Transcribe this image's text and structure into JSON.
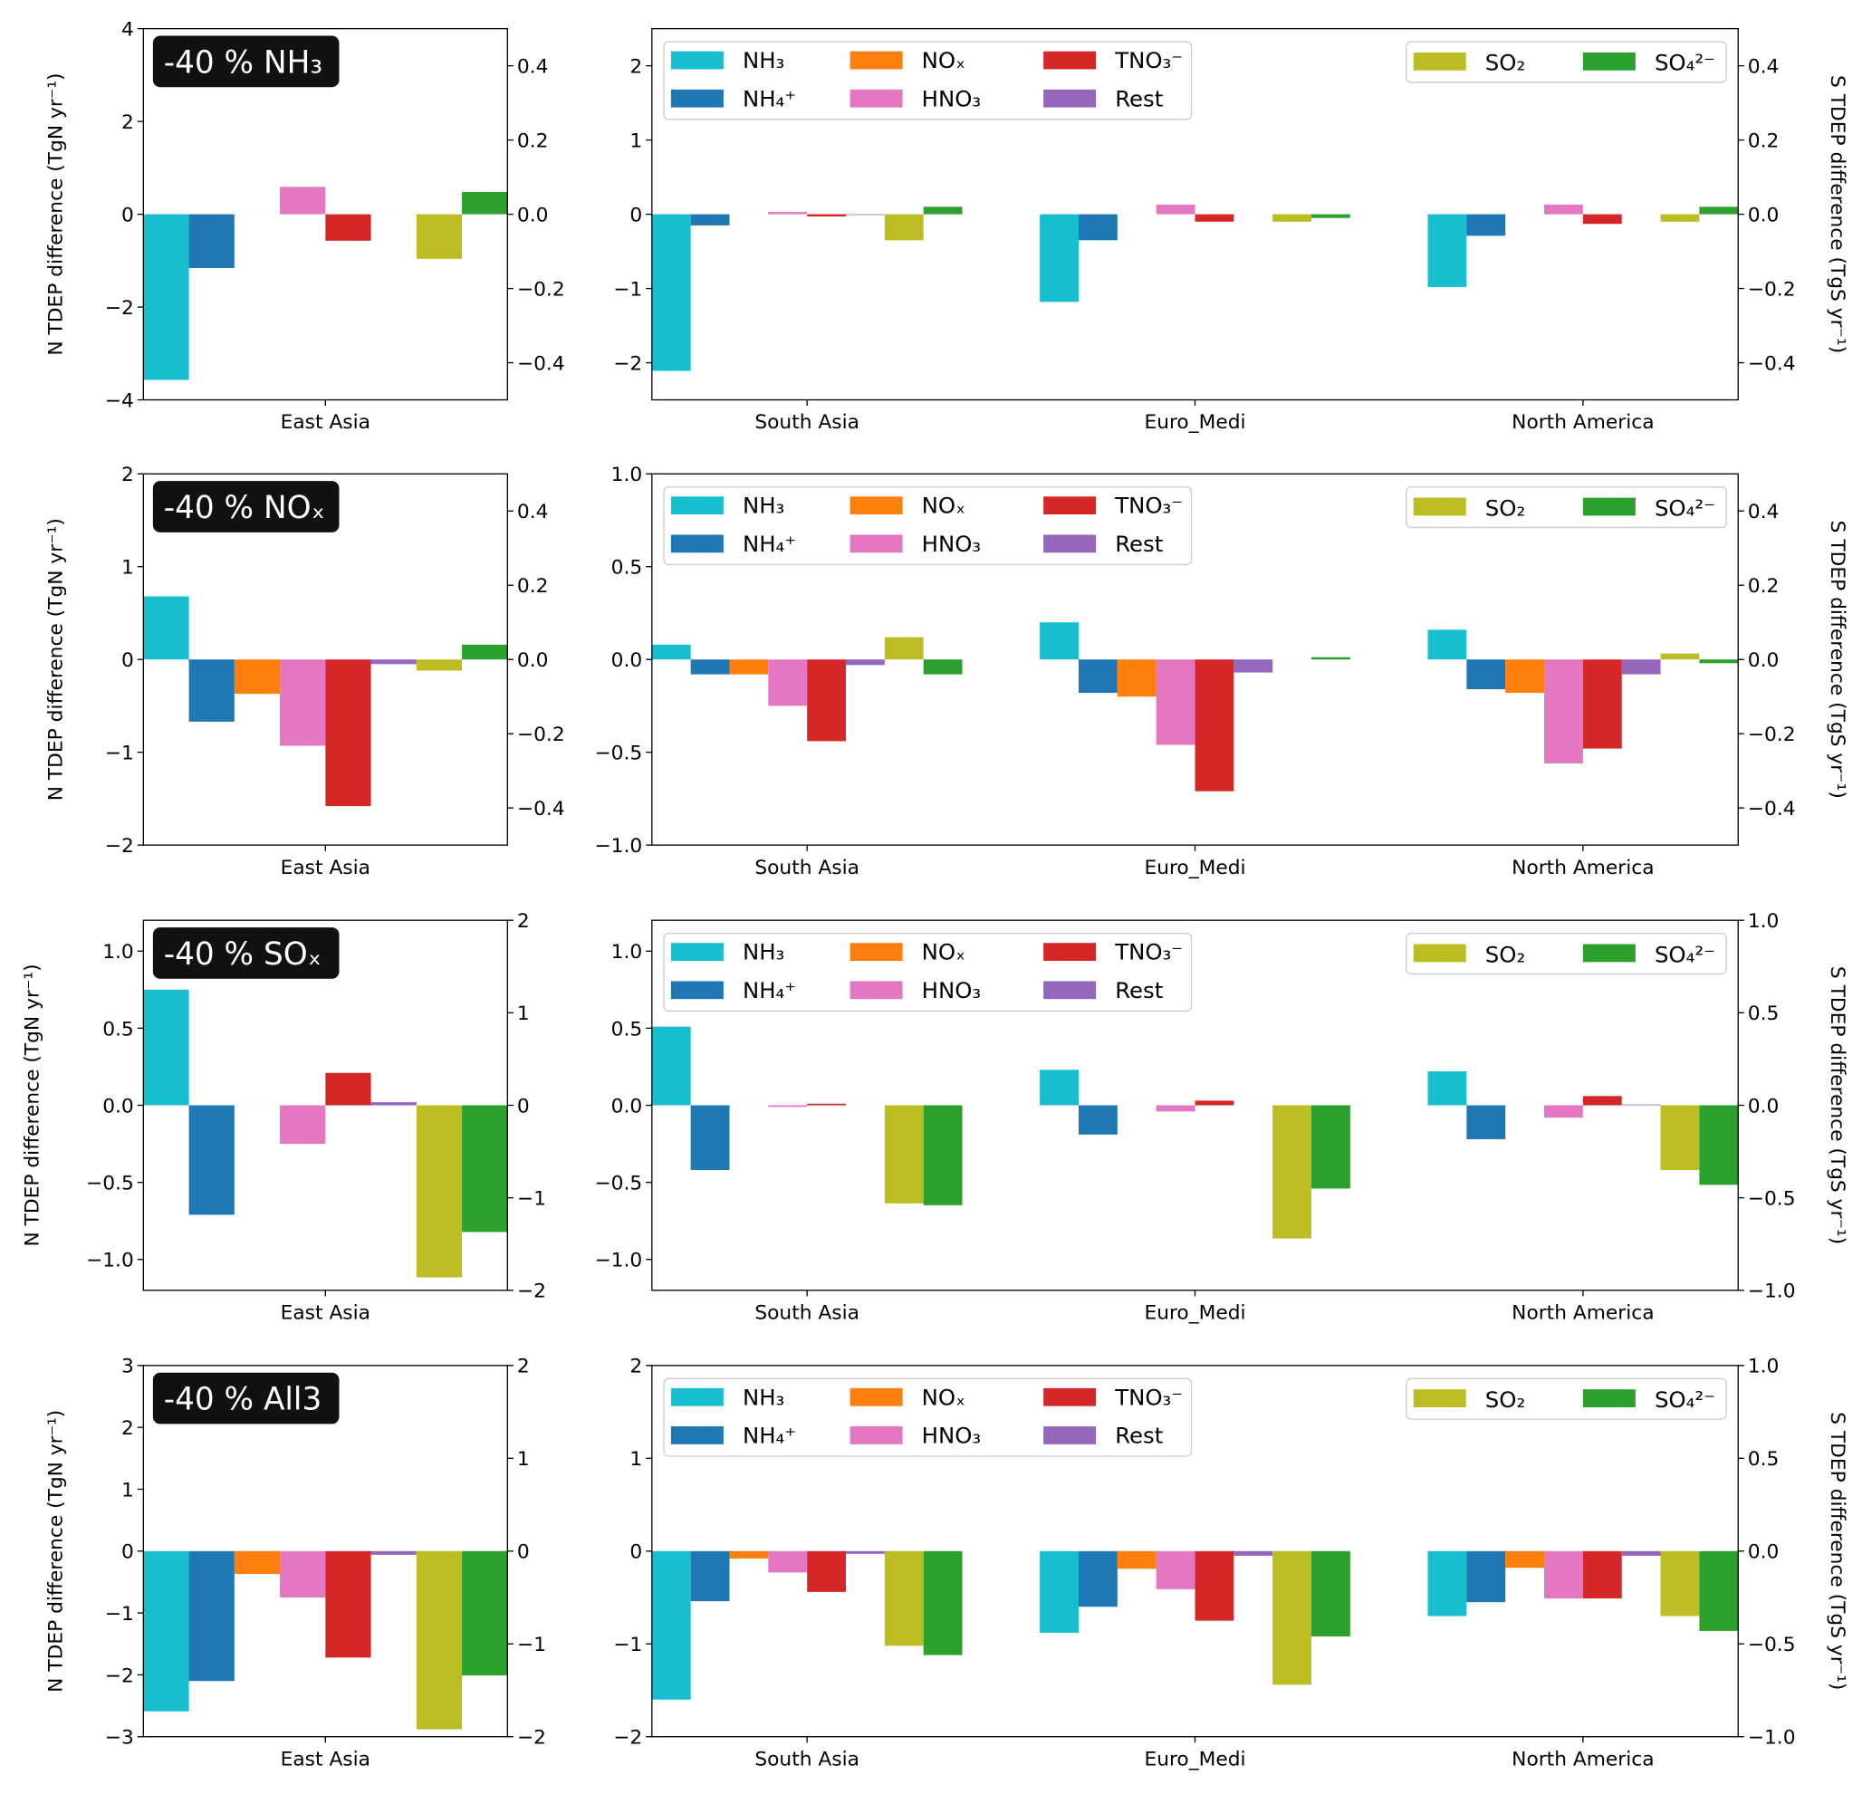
{
  "chart_data": {
    "type": "bar",
    "ylabel_left": "N TDEP difference (TgN yr⁻¹)",
    "ylabel_right": "S TDEP difference (TgS yr⁻¹)",
    "series_names": [
      "NH₃",
      "NH₄⁺",
      "NOₓ",
      "HNO₃",
      "TNO₃⁻",
      "Rest",
      "SO₂",
      "SO₄²⁻"
    ],
    "series_axis": [
      "N",
      "N",
      "N",
      "N",
      "N",
      "N",
      "S",
      "S"
    ],
    "colors": [
      "#17becf",
      "#1f77b4",
      "#ff7f0e",
      "#e377c2",
      "#d62728",
      "#9467bd",
      "#bcbd22",
      "#2ca02c"
    ],
    "legend_placement": "top (inside right panels)",
    "grid": false,
    "rows": [
      {
        "scenario": "-40 % NH₃",
        "left_panel": {
          "categories": [
            "East Asia"
          ],
          "n_ylim": [
            -4,
            4
          ],
          "n_ticks": [
            -4,
            -2,
            0,
            2,
            4
          ],
          "n_tick_labels": [
            "−4",
            "−2",
            "0",
            "2",
            "4"
          ],
          "s_ylim": [
            -0.5,
            0.5
          ],
          "s_ticks": [
            -0.4,
            -0.2,
            0,
            0.2,
            0.4
          ],
          "s_tick_labels": [
            "−0.4",
            "−0.2",
            "0.0",
            "0.2",
            "0.4"
          ],
          "values": [
            [
              -3.57,
              -1.16,
              0.0,
              0.59,
              -0.57,
              0.0,
              -0.12,
              0.06
            ]
          ]
        },
        "right_panel": {
          "categories": [
            "South Asia",
            "Euro_Medi",
            "North America"
          ],
          "n_ylim": [
            -2.5,
            2.5
          ],
          "n_ticks": [
            -2,
            -1,
            0,
            1,
            2
          ],
          "n_tick_labels": [
            "−2",
            "−1",
            "0",
            "1",
            "2"
          ],
          "s_ylim": [
            -0.5,
            0.5
          ],
          "s_ticks": [
            -0.4,
            -0.2,
            0,
            0.2,
            0.4
          ],
          "s_tick_labels": [
            "−0.4",
            "−0.2",
            "0.0",
            "0.2",
            "0.4"
          ],
          "values": [
            [
              -2.11,
              -0.15,
              0.0,
              0.03,
              -0.03,
              -0.01,
              -0.07,
              0.02
            ],
            [
              -1.18,
              -0.35,
              0.0,
              0.13,
              -0.1,
              0.0,
              -0.02,
              -0.01
            ],
            [
              -0.98,
              -0.29,
              0.0,
              0.13,
              -0.13,
              0.0,
              -0.02,
              0.02
            ]
          ]
        }
      },
      {
        "scenario": "-40 % NOₓ",
        "left_panel": {
          "categories": [
            "East Asia"
          ],
          "n_ylim": [
            -2,
            2
          ],
          "n_ticks": [
            -2,
            -1,
            0,
            1,
            2
          ],
          "n_tick_labels": [
            "−2",
            "−1",
            "0",
            "1",
            "2"
          ],
          "s_ylim": [
            -0.5,
            0.5
          ],
          "s_ticks": [
            -0.4,
            -0.2,
            0,
            0.2,
            0.4
          ],
          "s_tick_labels": [
            "−0.4",
            "−0.2",
            "0.0",
            "0.2",
            "0.4"
          ],
          "values": [
            [
              0.68,
              -0.67,
              -0.37,
              -0.93,
              -1.58,
              -0.05,
              -0.03,
              0.04
            ]
          ]
        },
        "right_panel": {
          "categories": [
            "South Asia",
            "Euro_Medi",
            "North America"
          ],
          "n_ylim": [
            -1,
            1
          ],
          "n_ticks": [
            -1,
            -0.5,
            0,
            0.5,
            1
          ],
          "n_tick_labels": [
            "−1.0",
            "−0.5",
            "0.0",
            "0.5",
            "1.0"
          ],
          "s_ylim": [
            -0.5,
            0.5
          ],
          "s_ticks": [
            -0.4,
            -0.2,
            0,
            0.2,
            0.4
          ],
          "s_tick_labels": [
            "−0.4",
            "−0.2",
            "0.0",
            "0.2",
            "0.4"
          ],
          "values": [
            [
              0.08,
              -0.08,
              -0.08,
              -0.25,
              -0.44,
              -0.03,
              0.06,
              -0.04
            ],
            [
              0.2,
              -0.18,
              -0.2,
              -0.46,
              -0.71,
              -0.07,
              0.0,
              0.006
            ],
            [
              0.16,
              -0.16,
              -0.18,
              -0.56,
              -0.48,
              -0.08,
              0.016,
              -0.01
            ]
          ]
        }
      },
      {
        "scenario": "-40 % SOₓ",
        "left_panel": {
          "categories": [
            "East Asia"
          ],
          "n_ylim": [
            -1.2,
            1.2
          ],
          "n_ticks": [
            -1,
            -0.5,
            0,
            0.5,
            1
          ],
          "n_tick_labels": [
            "−1.0",
            "−0.5",
            "0.0",
            "0.5",
            "1.0"
          ],
          "s_ylim": [
            -2,
            2
          ],
          "s_ticks": [
            -2,
            -1,
            0,
            1,
            2
          ],
          "s_tick_labels": [
            "−2",
            "−1",
            "0",
            "1",
            "2"
          ],
          "values": [
            [
              0.75,
              -0.71,
              0.0,
              -0.25,
              0.21,
              0.02,
              -1.86,
              -1.37
            ]
          ]
        },
        "right_panel": {
          "categories": [
            "South Asia",
            "Euro_Medi",
            "North America"
          ],
          "n_ylim": [
            -1.2,
            1.2
          ],
          "n_ticks": [
            -1,
            -0.5,
            0,
            0.5,
            1
          ],
          "n_tick_labels": [
            "−1.0",
            "−0.5",
            "0.0",
            "0.5",
            "1.0"
          ],
          "s_ylim": [
            -1,
            1
          ],
          "s_ticks": [
            -1,
            -0.5,
            0,
            0.5,
            1
          ],
          "s_tick_labels": [
            "−1.0",
            "−0.5",
            "0.0",
            "0.5",
            "1.0"
          ],
          "values": [
            [
              0.51,
              -0.42,
              0.0,
              -0.01,
              0.01,
              0.0,
              -0.53,
              -0.54
            ],
            [
              0.23,
              -0.19,
              0.0,
              -0.04,
              0.03,
              0.0,
              -0.72,
              -0.45
            ],
            [
              0.22,
              -0.22,
              0.0,
              -0.08,
              0.06,
              0.005,
              -0.35,
              -0.43
            ]
          ]
        }
      },
      {
        "scenario": "-40 % All3",
        "left_panel": {
          "categories": [
            "East Asia"
          ],
          "n_ylim": [
            -3,
            3
          ],
          "n_ticks": [
            -3,
            -2,
            -1,
            0,
            1,
            2,
            3
          ],
          "n_tick_labels": [
            "−3",
            "−2",
            "−1",
            "0",
            "1",
            "2",
            "3"
          ],
          "s_ylim": [
            -2,
            2
          ],
          "s_ticks": [
            -2,
            -1,
            0,
            1,
            2
          ],
          "s_tick_labels": [
            "−2",
            "−1",
            "0",
            "1",
            "2"
          ],
          "values": [
            [
              -2.59,
              -2.1,
              -0.37,
              -0.75,
              -1.72,
              -0.06,
              -1.92,
              -1.34
            ]
          ]
        },
        "right_panel": {
          "categories": [
            "South Asia",
            "Euro_Medi",
            "North America"
          ],
          "n_ylim": [
            -2,
            2
          ],
          "n_ticks": [
            -2,
            -1,
            0,
            1,
            2
          ],
          "n_tick_labels": [
            "−2",
            "−1",
            "0",
            "1",
            "2"
          ],
          "s_ylim": [
            -1,
            1
          ],
          "s_ticks": [
            -1,
            -0.5,
            0,
            0.5,
            1
          ],
          "s_tick_labels": [
            "−1.0",
            "−0.5",
            "0.0",
            "0.5",
            "1.0"
          ],
          "values": [
            [
              -1.6,
              -0.54,
              -0.08,
              -0.23,
              -0.44,
              -0.03,
              -0.51,
              -0.56
            ],
            [
              -0.88,
              -0.6,
              -0.19,
              -0.41,
              -0.75,
              -0.05,
              -0.72,
              -0.46
            ],
            [
              -0.7,
              -0.55,
              -0.18,
              -0.51,
              -0.51,
              -0.05,
              -0.35,
              -0.43
            ]
          ]
        }
      }
    ]
  }
}
